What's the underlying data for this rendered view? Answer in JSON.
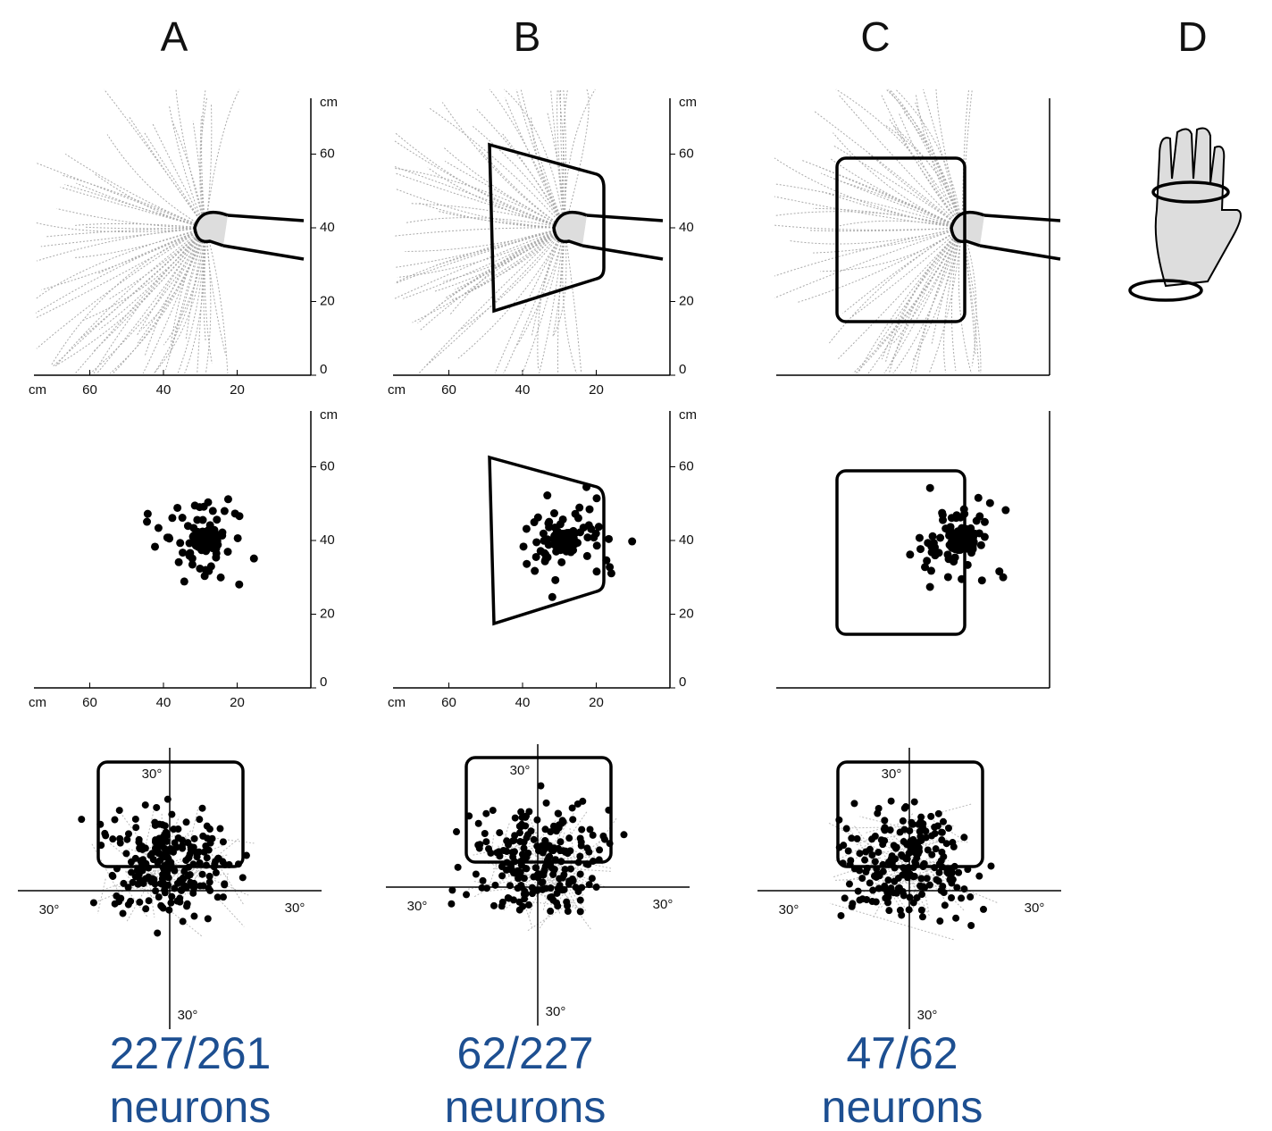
{
  "panels": [
    {
      "label": "A",
      "count": "227/261",
      "unit": "neurons"
    },
    {
      "label": "B",
      "count": "62/227",
      "unit": "neurons"
    },
    {
      "label": "C",
      "count": "47/62",
      "unit": "neurons"
    },
    {
      "label": "D"
    }
  ],
  "axes": {
    "unit": "cm",
    "ticks": [
      "0",
      "20",
      "40",
      "60"
    ],
    "angle": "30°"
  }
}
